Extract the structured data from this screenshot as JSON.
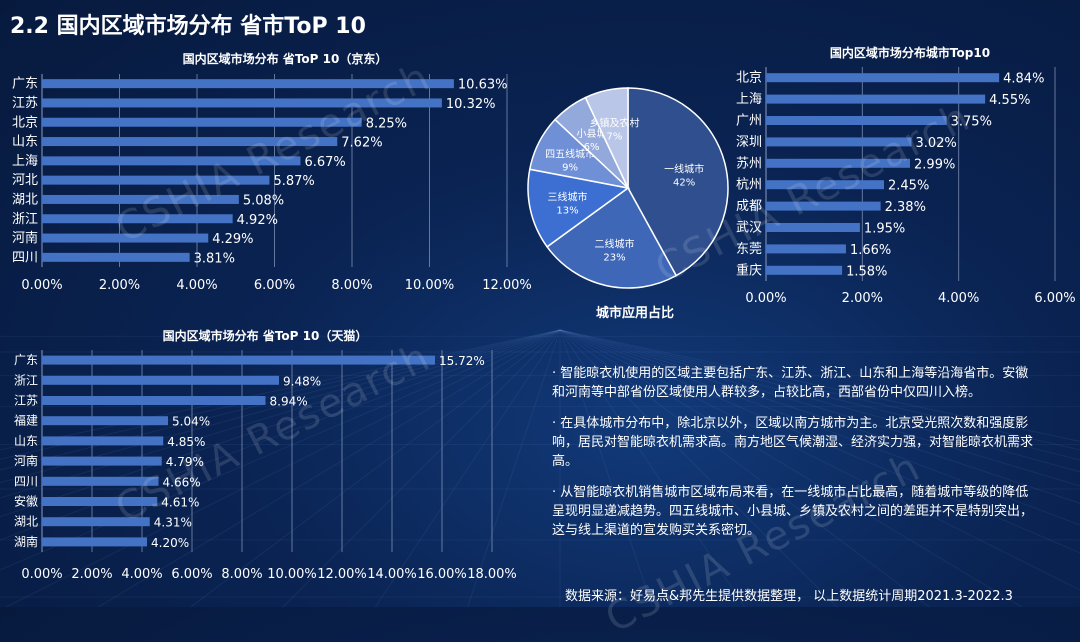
{
  "page_title": "2.2 国内区域市场分布 省市ToP 10",
  "watermark": "CSHIA Research",
  "notes": [
    "· 智能晾衣机使用的区域主要包括广东、江苏、浙江、山东和上海等沿海省市。安徽和河南等中部省份区域使用人群较多，占较比高，西部省份中仅四川入榜。",
    "· 在具体城市分布中，除北京以外，区域以南方城市为主。北京受光照次数和强度影响，居民对智能晾衣机需求高。南方地区气候潮湿、经济实力强，对智能晾衣机需求高。",
    "· 从智能晾衣机销售城市区域布局来看，在一线城市占比最高，随着城市等级的降低呈现明显递减趋势。四五线城市、小县城、乡镇及农村之间的差距并不是特别突出，这与线上渠道的宣发购买关系密切。"
  ],
  "source": "数据来源：好易点&邦先生提供数据整理，  以上数据统计周期2021.3-2022.3",
  "colors": {
    "bar": "#4472c4",
    "grid": "#8a9bbf",
    "pie": [
      "#2f4f8f",
      "#3f67b8",
      "#3c6fd1",
      "#6f8fd6",
      "#93a9dc",
      "#b9c6e8"
    ]
  },
  "chart_data": [
    {
      "id": "jd",
      "type": "bar",
      "orientation": "horizontal",
      "title": "国内区域市场分布 省ToP 10（京东）",
      "categories": [
        "广东",
        "江苏",
        "北京",
        "山东",
        "上海",
        "河北",
        "湖北",
        "浙江",
        "河南",
        "四川"
      ],
      "values": [
        10.63,
        10.32,
        8.25,
        7.62,
        6.67,
        5.87,
        5.08,
        4.92,
        4.29,
        3.81
      ],
      "value_labels": [
        "10.63%",
        "10.32%",
        "8.25%",
        "7.62%",
        "6.67%",
        "5.87%",
        "5.08%",
        "4.92%",
        "4.29%",
        "3.81%"
      ],
      "xlim": [
        0,
        12
      ],
      "xticks": [
        "0.00%",
        "2.00%",
        "4.00%",
        "6.00%",
        "8.00%",
        "10.00%",
        "12.00%"
      ],
      "grid": true
    },
    {
      "id": "tmall",
      "type": "bar",
      "orientation": "horizontal",
      "title": "国内区域市场分布 省ToP 10（天猫）",
      "categories": [
        "广东",
        "浙江",
        "江苏",
        "福建",
        "山东",
        "河南",
        "四川",
        "安徽",
        "湖北",
        "湖南"
      ],
      "values": [
        15.72,
        9.48,
        8.94,
        5.04,
        4.85,
        4.79,
        4.66,
        4.61,
        4.31,
        4.2
      ],
      "value_labels": [
        "15.72%",
        "9.48%",
        "8.94%",
        "5.04%",
        "4.85%",
        "4.79%",
        "4.66%",
        "4.61%",
        "4.31%",
        "4.20%"
      ],
      "xlim": [
        0,
        18
      ],
      "xticks": [
        "0.00%",
        "2.00%",
        "4.00%",
        "6.00%",
        "8.00%",
        "10.00%",
        "12.00%",
        "14.00%",
        "16.00%",
        "18.00%"
      ],
      "grid": true
    },
    {
      "id": "city",
      "type": "bar",
      "orientation": "horizontal",
      "title": "国内区域市场分布城市Top10",
      "categories": [
        "北京",
        "上海",
        "广州",
        "深圳",
        "苏州",
        "杭州",
        "成都",
        "武汉",
        "东莞",
        "重庆"
      ],
      "values": [
        4.84,
        4.55,
        3.75,
        3.02,
        2.99,
        2.45,
        2.38,
        1.95,
        1.66,
        1.58
      ],
      "value_labels": [
        "4.84%",
        "4.55%",
        "3.75%",
        "3.02%",
        "2.99%",
        "2.45%",
        "2.38%",
        "1.95%",
        "1.66%",
        "1.58%"
      ],
      "xlim": [
        0,
        6
      ],
      "xticks": [
        "0.00%",
        "2.00%",
        "4.00%",
        "6.00%"
      ],
      "grid": true
    },
    {
      "id": "tier",
      "type": "pie",
      "title": "城市应用占比",
      "slices": [
        {
          "label": "一线城市",
          "value": 42,
          "pct": "42%"
        },
        {
          "label": "二线城市",
          "value": 23,
          "pct": "23%"
        },
        {
          "label": "三线城市",
          "value": 13,
          "pct": "13%"
        },
        {
          "label": "四五线城市",
          "value": 9,
          "pct": "9%"
        },
        {
          "label": "小县城",
          "value": 6,
          "pct": "6%"
        },
        {
          "label": "乡镇及农村",
          "value": 7,
          "pct": "7%"
        }
      ]
    }
  ]
}
